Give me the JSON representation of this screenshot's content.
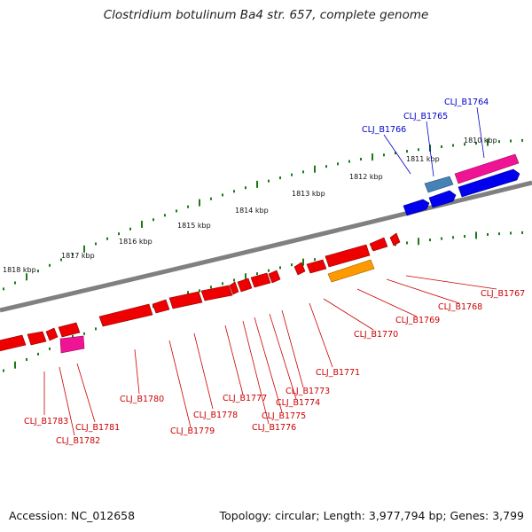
{
  "title": "Clostridium botulinum Ba4 str. 657, complete genome",
  "footer": {
    "accession": "Accession: NC_012658",
    "summary": "Topology: circular; Length: 3,977,794 bp; Genes: 3,799"
  },
  "colors": {
    "backbone": "#808080",
    "ticks": "#1a7a1a",
    "forward_label": "#0000cc",
    "reverse_label": "#cc0000",
    "gene_blue": "#0000ee",
    "gene_red": "#ee0000",
    "gene_pink": "#ee1493",
    "gene_orange": "#ff9900",
    "gene_steel": "#4682b4"
  },
  "scale_labels": [
    "1810 kbp",
    "1811 kbp",
    "1812 kbp",
    "1813 kbp",
    "1814 kbp",
    "1815 kbp",
    "1816 kbp",
    "1817 kbp",
    "1818 kbp"
  ],
  "forward_genes": [
    "CLJ_B1764",
    "CLJ_B1765",
    "CLJ_B1766"
  ],
  "reverse_genes": [
    "CLJ_B1767",
    "CLJ_B1768",
    "CLJ_B1769",
    "CLJ_B1770",
    "CLJ_B1771",
    "CLJ_B1773",
    "CLJ_B1774",
    "CLJ_B1775",
    "CLJ_B1776",
    "CLJ_B1777",
    "CLJ_B1778",
    "CLJ_B1779",
    "CLJ_B1780",
    "CLJ_B1781",
    "CLJ_B1782",
    "CLJ_B1783"
  ]
}
